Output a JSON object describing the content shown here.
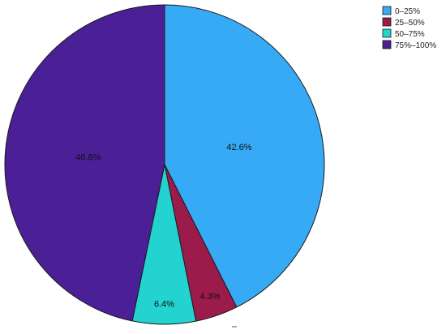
{
  "chart_data": {
    "type": "pie",
    "categories": [
      "0–25%",
      "25–50%",
      "50–75%",
      "75%–100%"
    ],
    "values": [
      42.6,
      4.3,
      6.4,
      46.8
    ],
    "labels": [
      "42.6%",
      "4.3%",
      "6.4%",
      "46.8%"
    ],
    "colors": [
      "#36aaf5",
      "#9b1b4b",
      "#22d3d0",
      "#4b1f95"
    ],
    "legend_position": "top-right",
    "start_angle": "12 o'clock",
    "direction": "clockwise"
  }
}
